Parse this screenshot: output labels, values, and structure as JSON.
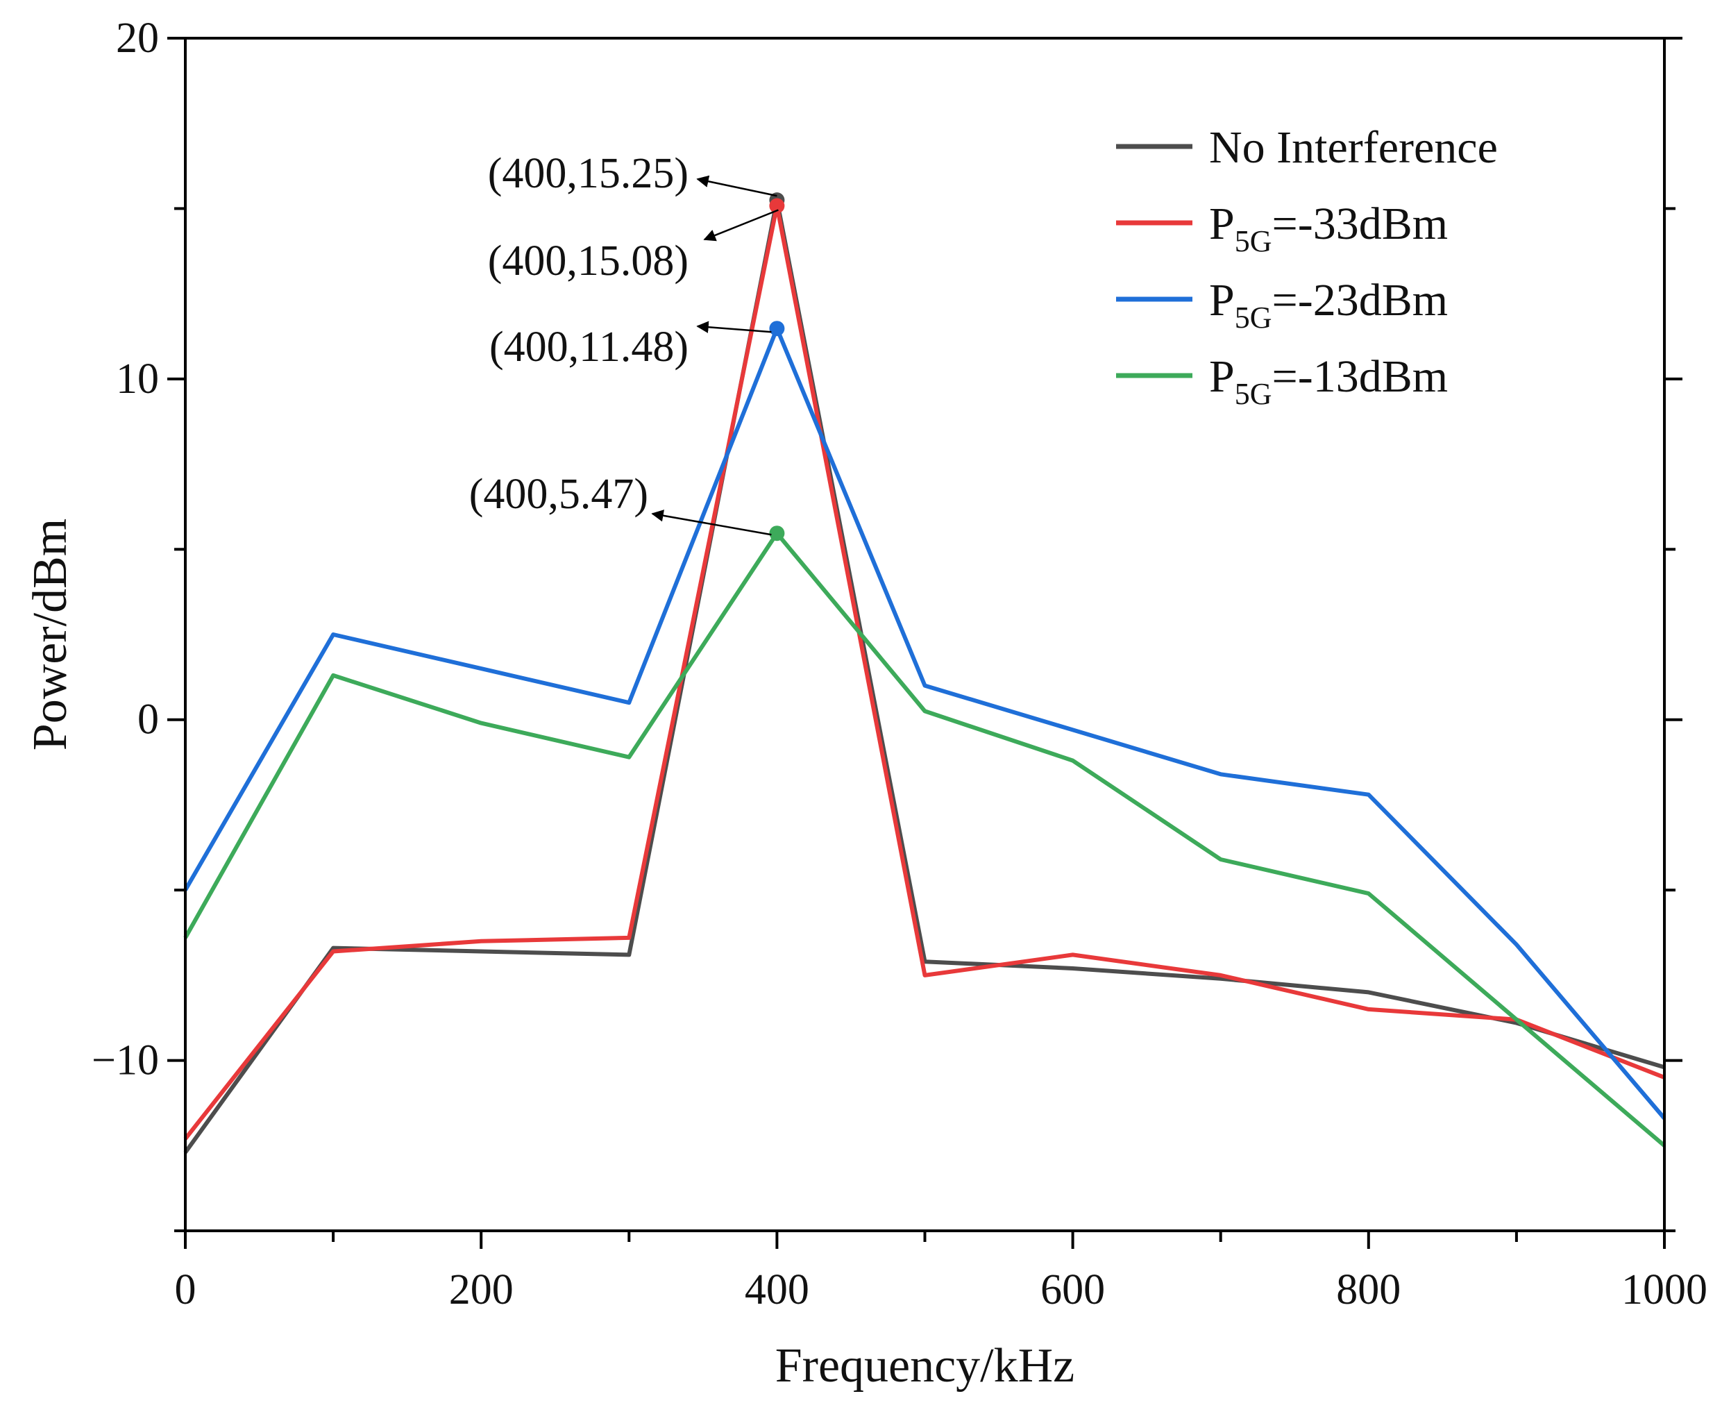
{
  "chart_data": {
    "type": "line",
    "title": "",
    "xlabel": "Frequency/kHz",
    "ylabel": "Power/dBm",
    "xlim": [
      0,
      1000
    ],
    "ylim": [
      -15,
      20
    ],
    "xticks": [
      0,
      200,
      400,
      600,
      800,
      1000
    ],
    "xtick_labels": [
      "0",
      "200",
      "400",
      "600",
      "800",
      "1000"
    ],
    "yticks": [
      -10,
      0,
      10,
      20
    ],
    "ytick_labels": [
      "−10",
      "0",
      "10",
      "20"
    ],
    "grid": false,
    "legend_position": "top-right",
    "x": [
      0,
      100,
      200,
      300,
      400,
      500,
      600,
      700,
      800,
      900,
      1000
    ],
    "series": [
      {
        "name": "No Interference",
        "legend_prefix": "No Interference",
        "legend_sub": "",
        "legend_suffix": "",
        "color": "#4d4d4d",
        "values": [
          -12.7,
          -6.7,
          -6.8,
          -6.9,
          15.25,
          -7.1,
          -7.3,
          -7.6,
          -8.0,
          -8.9,
          -10.2
        ]
      },
      {
        "name": "P5G=-33dBm",
        "legend_prefix": "P",
        "legend_sub": "5G",
        "legend_suffix": "=-33dBm",
        "color": "#e8393a",
        "values": [
          -12.3,
          -6.8,
          -6.5,
          -6.4,
          15.08,
          -7.5,
          -6.9,
          -7.5,
          -8.5,
          -8.8,
          -10.5
        ]
      },
      {
        "name": "P5G=-23dBm",
        "legend_prefix": "P",
        "legend_sub": "5G",
        "legend_suffix": "=-23dBm",
        "color": "#1f6fd8",
        "values": [
          -5.0,
          2.5,
          1.5,
          0.5,
          11.48,
          1.0,
          -0.3,
          -1.6,
          -2.2,
          -6.6,
          -11.7
        ]
      },
      {
        "name": "P5G=-13dBm",
        "legend_prefix": "P",
        "legend_sub": "5G",
        "legend_suffix": "=-13dBm",
        "color": "#3daa5a",
        "values": [
          -6.4,
          1.3,
          -0.1,
          -1.1,
          5.47,
          0.25,
          -1.2,
          -4.1,
          -5.1,
          -8.8,
          -12.5
        ]
      }
    ],
    "annotations": [
      {
        "text": "(400,15.25)",
        "x": 400,
        "y": 15.25,
        "series": 0
      },
      {
        "text": "(400,15.08)",
        "x": 400,
        "y": 15.08,
        "series": 1
      },
      {
        "text": "(400,11.48)",
        "x": 400,
        "y": 11.48,
        "series": 2
      },
      {
        "text": "(400,5.47)",
        "x": 400,
        "y": 5.47,
        "series": 3
      }
    ]
  }
}
